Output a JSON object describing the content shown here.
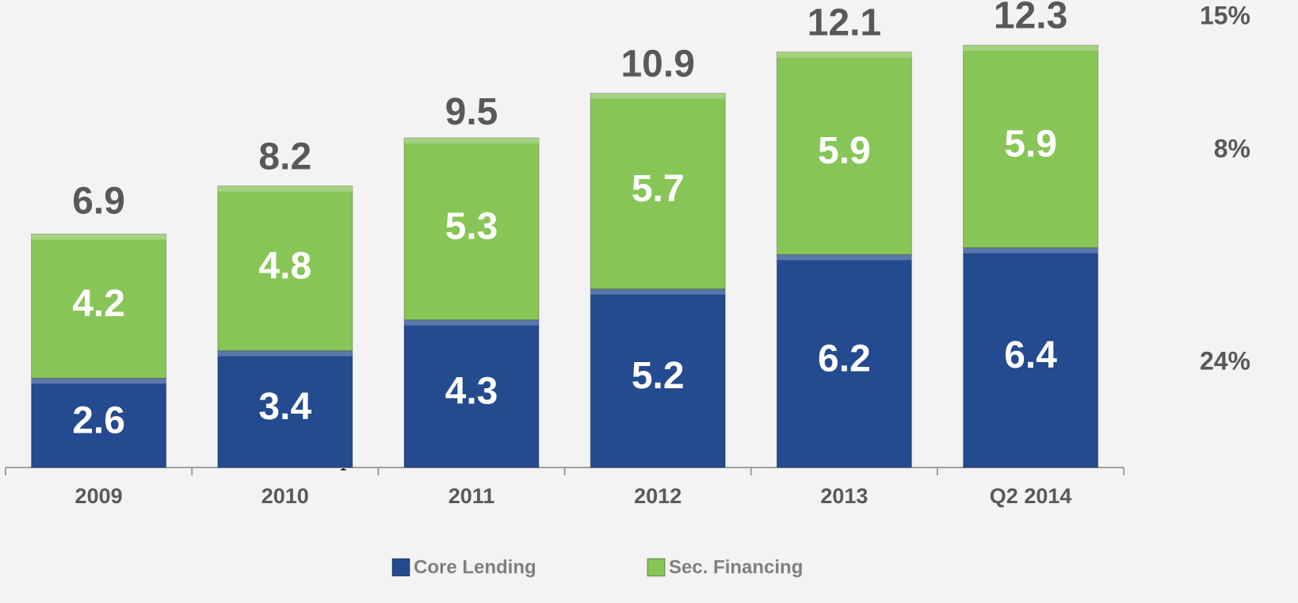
{
  "chart_data": {
    "type": "stacked_bar",
    "categories": [
      "2009",
      "2010",
      "2011",
      "2012",
      "2013",
      "Q2 2014"
    ],
    "series": [
      {
        "name": "Core Lending",
        "color": "#244a8f",
        "values": [
          2.6,
          3.4,
          4.3,
          5.2,
          6.2,
          6.4
        ]
      },
      {
        "name": "Sec. Financing",
        "color": "#88c557",
        "values": [
          4.2,
          4.8,
          5.3,
          5.7,
          5.9,
          5.9
        ]
      }
    ],
    "totals": [
      6.9,
      8.2,
      9.5,
      10.9,
      12.1,
      12.3
    ],
    "annotations": [
      "15%",
      "8%",
      "24%"
    ],
    "footnote_mark": "1",
    "ylim": [
      0,
      12.3
    ]
  }
}
